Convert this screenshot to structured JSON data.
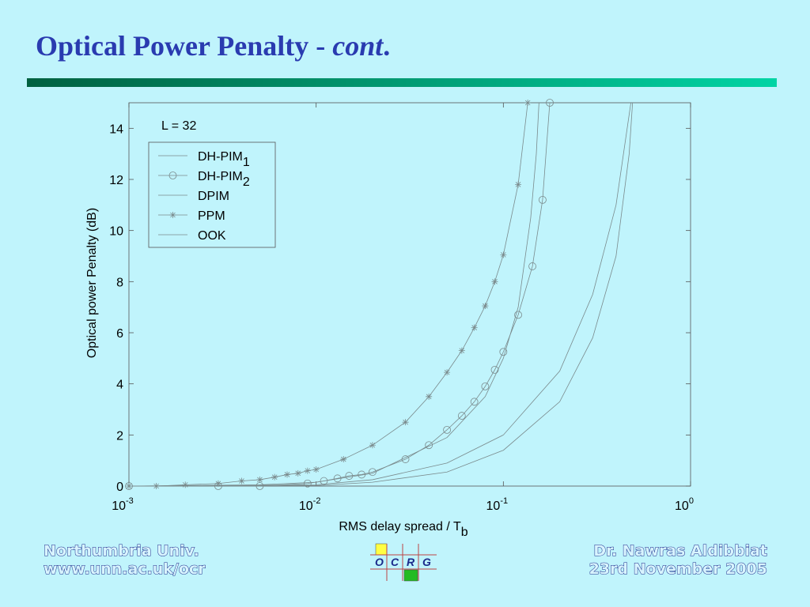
{
  "slide": {
    "title": "Optical Power Penalty -",
    "title_italic": "cont",
    "title_end": ".",
    "footer_left": [
      "Northumbria   Univ.",
      "www.unn.ac.uk/ocr"
    ],
    "footer_right": [
      "Dr. Nawras Aldibbiat",
      "23rd November 2005"
    ],
    "logo": [
      "O",
      "C",
      "R",
      "G"
    ]
  },
  "chart_data": {
    "type": "line",
    "log_x": true,
    "annotation": "L = 32",
    "x_label": "RMS delay spread / T",
    "x_label_sub": "b",
    "y_label": "Optical power Penalty (dB)",
    "xlim": [
      0.001,
      1
    ],
    "xticks": [
      {
        "value": 0.001,
        "label": "10",
        "exponent": "-3"
      },
      {
        "value": 0.01,
        "label": "10",
        "exponent": "-2"
      },
      {
        "value": 0.1,
        "label": "10",
        "exponent": "-1"
      },
      {
        "value": 1,
        "label": "10",
        "exponent": "0"
      }
    ],
    "ylim": [
      0,
      15
    ],
    "yticks": [
      0,
      2,
      4,
      6,
      8,
      10,
      12,
      14
    ],
    "grid": false,
    "legend": "upper left",
    "series": [
      {
        "name": "DH-PIM",
        "subscript": "1",
        "color": "#7a8a8c",
        "marker": "none",
        "x": [
          0.001,
          0.005,
          0.01,
          0.02,
          0.05,
          0.08,
          0.1,
          0.12,
          0.14,
          0.15,
          0.155
        ],
        "values": [
          0,
          0.05,
          0.15,
          0.5,
          1.9,
          3.5,
          5.0,
          7.0,
          10.5,
          13,
          15
        ]
      },
      {
        "name": "DH-PIM",
        "subscript": "2",
        "color": "#7a8a8c",
        "marker": "circle",
        "x": [
          0.001,
          0.003,
          0.005,
          0.009,
          0.011,
          0.013,
          0.015,
          0.0175,
          0.02,
          0.03,
          0.04,
          0.05,
          0.06,
          0.07,
          0.08,
          0.09,
          0.1,
          0.12,
          0.143,
          0.162,
          0.177
        ],
        "values": [
          0,
          0,
          0,
          0.1,
          0.2,
          0.3,
          0.4,
          0.45,
          0.55,
          1.05,
          1.6,
          2.2,
          2.75,
          3.3,
          3.9,
          4.55,
          5.25,
          6.7,
          8.6,
          11.2,
          15
        ]
      },
      {
        "name": "DPIM",
        "color": "#7a8a8c",
        "marker": "none",
        "x": [
          0.001,
          0.01,
          0.02,
          0.05,
          0.1,
          0.2,
          0.3,
          0.4,
          0.48
        ],
        "values": [
          0,
          0.05,
          0.25,
          0.9,
          2.0,
          4.5,
          7.5,
          11,
          15
        ]
      },
      {
        "name": "PPM",
        "color": "#7a8a8c",
        "marker": "star",
        "x": [
          0.001,
          0.0014,
          0.002,
          0.003,
          0.004,
          0.005,
          0.006,
          0.007,
          0.008,
          0.009,
          0.01,
          0.014,
          0.02,
          0.03,
          0.04,
          0.05,
          0.06,
          0.07,
          0.08,
          0.09,
          0.1,
          0.12,
          0.135
        ],
        "values": [
          0,
          0,
          0.05,
          0.1,
          0.2,
          0.25,
          0.35,
          0.45,
          0.5,
          0.6,
          0.65,
          1.05,
          1.6,
          2.5,
          3.5,
          4.45,
          5.3,
          6.2,
          7.05,
          8.0,
          9.05,
          11.8,
          15
        ]
      },
      {
        "name": "OOK",
        "color": "#7a8a8c",
        "marker": "none",
        "x": [
          0.001,
          0.01,
          0.02,
          0.05,
          0.1,
          0.2,
          0.3,
          0.4,
          0.47,
          0.49
        ],
        "values": [
          0,
          0.02,
          0.15,
          0.55,
          1.4,
          3.3,
          5.8,
          9,
          13,
          15
        ]
      }
    ]
  }
}
